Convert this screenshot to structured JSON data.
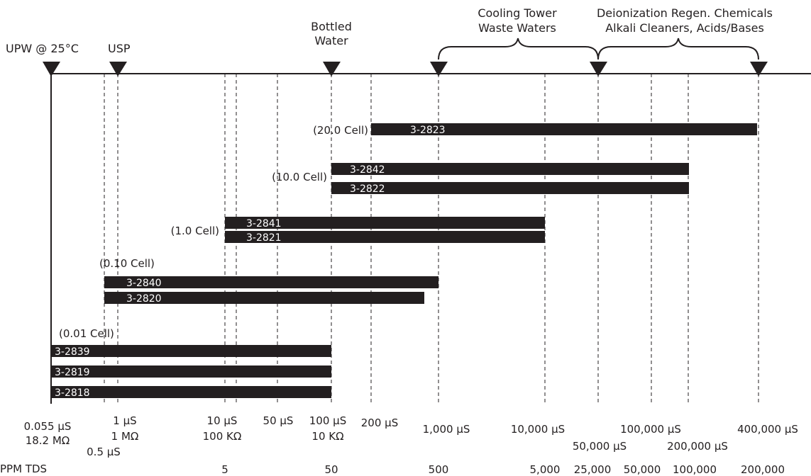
{
  "top_labels": {
    "upw": "UPW @ 25°C",
    "usp": "USP",
    "bottled_line1": "Bottled",
    "bottled_line2": "Water",
    "cooling_line1": "Cooling Tower",
    "cooling_line2": "Waste Waters",
    "deion_line1": "Deionization Regen. Chemicals",
    "deion_line2": "Alkali Cleaners, Acids/Bases"
  },
  "cell_labels": {
    "c20": "(20.0 Cell)",
    "c10": "(10.0 Cell)",
    "c1": "(1.0 Cell)",
    "c010": "(0.10 Cell)",
    "c001": "(0.01 Cell)"
  },
  "bars": [
    {
      "id": "bar-3-2823",
      "label": "3-2823",
      "cell": "20.0",
      "from": "200 µS",
      "to": "400,000 µS"
    },
    {
      "id": "bar-3-2842",
      "label": "3-2842",
      "cell": "10.0",
      "from": "100 µS",
      "to": "200,000 µS"
    },
    {
      "id": "bar-3-2822",
      "label": "3-2822",
      "cell": "10.0",
      "from": "100 µS",
      "to": "200,000 µS"
    },
    {
      "id": "bar-3-2841",
      "label": "3-2841",
      "cell": "1.0",
      "from": "10 µS",
      "to": "10,000 µS"
    },
    {
      "id": "bar-3-2821",
      "label": "3-2821",
      "cell": "1.0",
      "from": "10 µS",
      "to": "10,000 µS"
    },
    {
      "id": "bar-3-2840",
      "label": "3-2840",
      "cell": "0.10",
      "from": "0.5 µS",
      "to": "1,000 µS"
    },
    {
      "id": "bar-3-2820",
      "label": "3-2820",
      "cell": "0.10",
      "from": "0.5 µS",
      "to": ""
    },
    {
      "id": "bar-3-2839",
      "label": "3-2839",
      "cell": "0.01",
      "from": "0.055 µS",
      "to": "100 µS"
    },
    {
      "id": "bar-3-2819",
      "label": "3-2819",
      "cell": "0.01",
      "from": "0.055 µS",
      "to": "100 µS"
    },
    {
      "id": "bar-3-2818",
      "label": "3-2818",
      "cell": "0.01",
      "from": "0.055 µS",
      "to": "100 µS"
    }
  ],
  "axis": {
    "l_0055_a": "0.055 µS",
    "l_0055_b": "18.2 MΩ",
    "l_05": "0.5 µS",
    "l_1_a": "1 µS",
    "l_1_b": "1 MΩ",
    "l_10_a": "10 µS",
    "l_10_b": "100 KΩ",
    "l_50": "50 µS",
    "l_100_a": "100 µS",
    "l_100_b": "10 KΩ",
    "l_200": "200 µS",
    "l_1000": "1,000 µS",
    "l_10000": "10,000 µS",
    "l_50000": "50,000 µS",
    "l_100000": "100,000 µS",
    "l_200000": "200,000 µS",
    "l_400000": "400,000 µS"
  },
  "tds": {
    "title": "PPM TDS",
    "v5": "5",
    "v50": "50",
    "v500": "500",
    "v5000": "5,000",
    "v25000": "25,000",
    "v50000": "50,000",
    "v100000": "100,000",
    "v200000": "200,000"
  },
  "colors": {
    "ink": "#231f20",
    "bar": "#231f20",
    "bar_text": "#ffffff",
    "background": "#ffffff"
  }
}
